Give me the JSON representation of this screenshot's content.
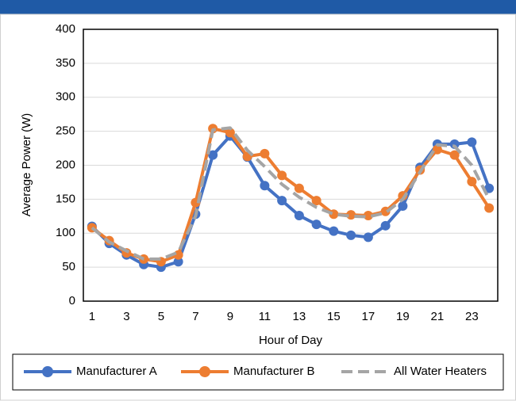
{
  "chart_data": {
    "type": "line",
    "x_label": "Hour of Day",
    "y_label": "Average Power (W)",
    "categories": [
      1,
      null,
      3,
      null,
      5,
      null,
      7,
      null,
      9,
      null,
      11,
      null,
      13,
      null,
      15,
      null,
      17,
      null,
      19,
      null,
      21,
      null,
      23,
      null
    ],
    "series": [
      {
        "name": "Manufacturer A",
        "color": "#4472c4",
        "marker": true,
        "dashed": false,
        "values": [
          110,
          85,
          68,
          54,
          50,
          58,
          128,
          215,
          243,
          212,
          170,
          148,
          126,
          113,
          103,
          97,
          94,
          111,
          140,
          197,
          231,
          231,
          234,
          166
        ]
      },
      {
        "name": "Manufacturer B",
        "color": "#ed7d31",
        "marker": true,
        "dashed": false,
        "values": [
          108,
          89,
          71,
          62,
          58,
          68,
          145,
          254,
          248,
          213,
          217,
          185,
          166,
          148,
          128,
          127,
          126,
          132,
          155,
          193,
          223,
          215,
          176,
          137
        ]
      },
      {
        "name": "All Water Heaters",
        "color": "#a5a5a5",
        "marker": false,
        "dashed": true,
        "values": [
          108,
          87,
          74,
          62,
          62,
          72,
          125,
          252,
          255,
          222,
          198,
          172,
          153,
          138,
          128,
          125,
          124,
          130,
          150,
          190,
          230,
          228,
          200,
          150
        ]
      }
    ],
    "ylim": [
      0,
      400
    ],
    "yticks": [
      0,
      50,
      100,
      150,
      200,
      250,
      300,
      350,
      400
    ],
    "grid": true,
    "legend": "bottom"
  }
}
